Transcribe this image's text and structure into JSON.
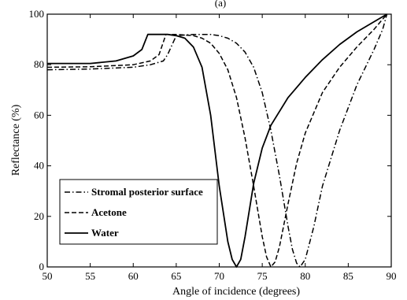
{
  "chart_data": {
    "type": "line",
    "title": "(a)",
    "xlabel": "Angle of incidence (degrees)",
    "ylabel": "Reflectance (%)",
    "xlim": [
      50,
      90
    ],
    "ylim": [
      0,
      100
    ],
    "xticks": [
      50,
      55,
      60,
      65,
      70,
      75,
      80,
      85,
      90
    ],
    "yticks": [
      0,
      20,
      40,
      60,
      80,
      100
    ],
    "grid": false,
    "legend_position": "bottom-left",
    "series": [
      {
        "name": "Stromal posterior surface",
        "style": "dashdot",
        "color": "#000000",
        "x": [
          50,
          55,
          60,
          62,
          63.5,
          64,
          65,
          67,
          69,
          70,
          71,
          72,
          73,
          74,
          75,
          76,
          77,
          78,
          78.5,
          79,
          79.4,
          80,
          81,
          82,
          84,
          86,
          88,
          89,
          89.5
        ],
        "y": [
          78,
          78.3,
          79,
          80,
          81.5,
          84,
          91.5,
          92,
          92,
          91.5,
          90.5,
          88.5,
          85,
          79,
          69,
          54,
          36,
          16,
          7,
          1.5,
          0,
          3,
          16,
          32,
          54,
          72,
          86,
          94,
          100
        ]
      },
      {
        "name": "Acetone",
        "style": "dashed",
        "color": "#000000",
        "x": [
          50,
          55,
          60,
          62,
          63,
          63.8,
          65,
          67,
          68,
          69,
          70,
          71,
          72,
          73,
          74,
          75,
          75.5,
          76,
          76.5,
          77,
          78,
          79,
          80,
          82,
          84,
          86,
          88,
          89.5
        ],
        "y": [
          79,
          79.2,
          80,
          81.5,
          84,
          92,
          92,
          91.5,
          90.5,
          88.5,
          84.5,
          78,
          67,
          51,
          32,
          12,
          4,
          0,
          2,
          8,
          25,
          41,
          53,
          69,
          79,
          87,
          94,
          100
        ]
      },
      {
        "name": "Water",
        "style": "solid",
        "color": "#000000",
        "x": [
          50,
          55,
          58,
          60,
          61,
          61.7,
          63,
          64,
          65,
          66,
          67,
          68,
          69,
          70,
          71,
          71.5,
          72,
          72.5,
          73,
          74,
          75,
          76,
          78,
          80,
          82,
          84,
          86,
          88,
          89.5
        ],
        "y": [
          80.5,
          80.5,
          81.5,
          83.5,
          86,
          92,
          92,
          92,
          91.5,
          90.5,
          87,
          79,
          60,
          32,
          10,
          3,
          0,
          3,
          12,
          33,
          47,
          56,
          67,
          75,
          82,
          88,
          93,
          97,
          100
        ]
      }
    ]
  }
}
